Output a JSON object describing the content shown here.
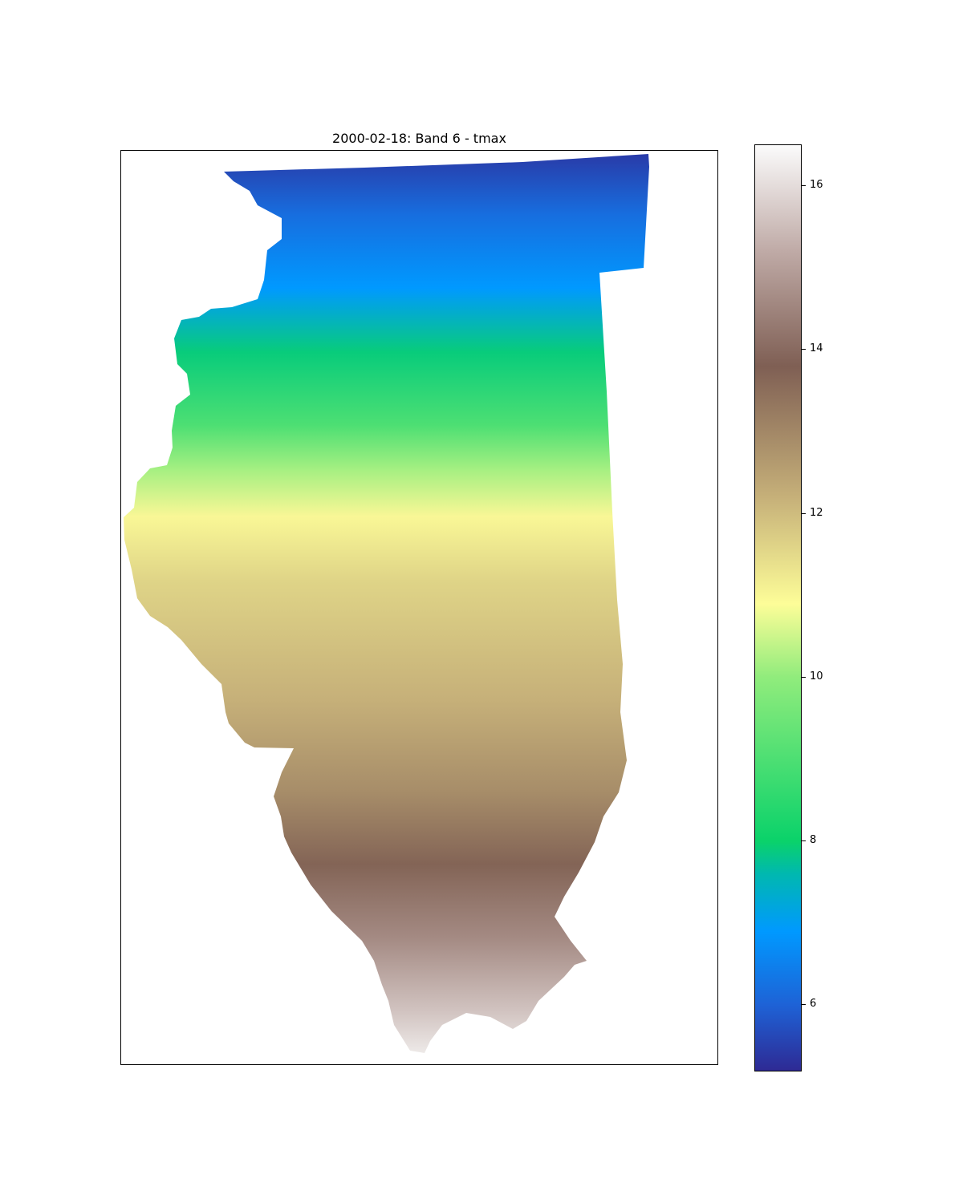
{
  "title": "2000-02-18: Band 6 - tmax",
  "map": {
    "region": "Illinois",
    "variable": "tmax",
    "colormap": "terrain",
    "gradient_stops": [
      {
        "value": 5.2,
        "color": "#2e2a94"
      },
      {
        "value": 6.0,
        "color": "#1e62d6"
      },
      {
        "value": 6.9,
        "color": "#0099ff"
      },
      {
        "value": 7.6,
        "color": "#00b8b0"
      },
      {
        "value": 8.0,
        "color": "#0ad26a"
      },
      {
        "value": 10.0,
        "color": "#90ec7c"
      },
      {
        "value": 10.9,
        "color": "#fdfd98"
      },
      {
        "value": 12.2,
        "color": "#c6b079"
      },
      {
        "value": 13.8,
        "color": "#7f5f54"
      },
      {
        "value": 15.2,
        "color": "#bfaaa6"
      },
      {
        "value": 16.5,
        "color": "#fbfbfb"
      }
    ]
  },
  "colorbar": {
    "min": 5.2,
    "max": 16.5,
    "ticks": [
      "6",
      "8",
      "10",
      "12",
      "14",
      "16"
    ]
  }
}
